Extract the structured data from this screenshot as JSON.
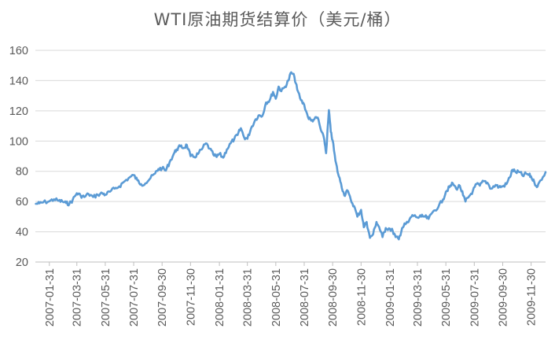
{
  "chart_data": {
    "type": "line",
    "title": "WTI原油期货结算价（美元/桶）",
    "xlabel": "",
    "ylabel": "",
    "ylim": [
      20,
      160
    ],
    "yticks": [
      20,
      40,
      60,
      80,
      100,
      120,
      140,
      160
    ],
    "xlim": [
      "2007-01-01",
      "2009-12-31"
    ],
    "xticks": [
      "2007-01-31",
      "2007-03-31",
      "2007-05-31",
      "2007-07-31",
      "2007-09-30",
      "2007-11-30",
      "2008-01-31",
      "2008-03-31",
      "2008-05-31",
      "2008-07-31",
      "2008-09-30",
      "2008-11-30",
      "2009-01-31",
      "2009-03-31",
      "2009-05-31",
      "2009-07-31",
      "2009-09-30",
      "2009-11-30"
    ],
    "grid": true,
    "legend": "none",
    "series": [
      {
        "color": "#5b9bd5",
        "points": [
          [
            "2007-01-02",
            58.5
          ],
          [
            "2007-01-10",
            58.8
          ],
          [
            "2007-01-18",
            59.5
          ],
          [
            "2007-01-31",
            60.2
          ],
          [
            "2007-02-10",
            61.5
          ],
          [
            "2007-02-20",
            60.5
          ],
          [
            "2007-02-28",
            60.0
          ],
          [
            "2007-03-08",
            59.0
          ],
          [
            "2007-03-15",
            58.5
          ],
          [
            "2007-03-22",
            61.0
          ],
          [
            "2007-03-31",
            65.5
          ],
          [
            "2007-04-08",
            64.0
          ],
          [
            "2007-04-16",
            63.0
          ],
          [
            "2007-04-25",
            65.0
          ],
          [
            "2007-05-05",
            63.0
          ],
          [
            "2007-05-15",
            64.5
          ],
          [
            "2007-05-25",
            65.5
          ],
          [
            "2007-05-31",
            64.5
          ],
          [
            "2007-06-10",
            66.5
          ],
          [
            "2007-06-20",
            68.5
          ],
          [
            "2007-06-30",
            70.0
          ],
          [
            "2007-07-10",
            73.0
          ],
          [
            "2007-07-20",
            75.5
          ],
          [
            "2007-07-31",
            77.5
          ],
          [
            "2007-08-08",
            74.0
          ],
          [
            "2007-08-16",
            71.5
          ],
          [
            "2007-08-25",
            72.0
          ],
          [
            "2007-09-05",
            75.5
          ],
          [
            "2007-09-15",
            78.5
          ],
          [
            "2007-09-22",
            81.5
          ],
          [
            "2007-09-30",
            82.0
          ],
          [
            "2007-10-08",
            80.5
          ],
          [
            "2007-10-16",
            86.0
          ],
          [
            "2007-10-25",
            91.5
          ],
          [
            "2007-10-31",
            94.5
          ],
          [
            "2007-11-08",
            96.5
          ],
          [
            "2007-11-16",
            95.5
          ],
          [
            "2007-11-22",
            97.5
          ],
          [
            "2007-11-30",
            90.0
          ],
          [
            "2007-12-08",
            89.5
          ],
          [
            "2007-12-16",
            91.5
          ],
          [
            "2007-12-24",
            94.5
          ],
          [
            "2008-01-02",
            98.5
          ],
          [
            "2008-01-10",
            95.0
          ],
          [
            "2008-01-18",
            91.0
          ],
          [
            "2008-01-25",
            89.5
          ],
          [
            "2008-01-31",
            91.5
          ],
          [
            "2008-02-08",
            89.0
          ],
          [
            "2008-02-16",
            94.5
          ],
          [
            "2008-02-24",
            98.5
          ],
          [
            "2008-03-03",
            101.5
          ],
          [
            "2008-03-10",
            104.0
          ],
          [
            "2008-03-17",
            108.5
          ],
          [
            "2008-03-24",
            102.5
          ],
          [
            "2008-03-31",
            101.5
          ],
          [
            "2008-04-08",
            108.5
          ],
          [
            "2008-04-16",
            113.5
          ],
          [
            "2008-04-24",
            117.0
          ],
          [
            "2008-05-02",
            116.5
          ],
          [
            "2008-05-10",
            125.5
          ],
          [
            "2008-05-18",
            127.0
          ],
          [
            "2008-05-25",
            132.5
          ],
          [
            "2008-05-31",
            128.0
          ],
          [
            "2008-06-06",
            136.0
          ],
          [
            "2008-06-12",
            133.0
          ],
          [
            "2008-06-20",
            136.0
          ],
          [
            "2008-06-27",
            140.0
          ],
          [
            "2008-07-03",
            145.5
          ],
          [
            "2008-07-10",
            142.5
          ],
          [
            "2008-07-16",
            134.0
          ],
          [
            "2008-07-24",
            127.0
          ],
          [
            "2008-07-31",
            124.0
          ],
          [
            "2008-08-08",
            116.0
          ],
          [
            "2008-08-15",
            113.5
          ],
          [
            "2008-08-22",
            114.5
          ],
          [
            "2008-08-29",
            115.5
          ],
          [
            "2008-09-05",
            107.0
          ],
          [
            "2008-09-12",
            101.0
          ],
          [
            "2008-09-16",
            92.0
          ],
          [
            "2008-09-22",
            120.5
          ],
          [
            "2008-09-26",
            106.0
          ],
          [
            "2008-09-30",
            100.5
          ],
          [
            "2008-10-06",
            87.0
          ],
          [
            "2008-10-12",
            78.0
          ],
          [
            "2008-10-18",
            72.0
          ],
          [
            "2008-10-25",
            64.0
          ],
          [
            "2008-10-31",
            67.5
          ],
          [
            "2008-11-08",
            61.0
          ],
          [
            "2008-11-15",
            57.0
          ],
          [
            "2008-11-22",
            50.0
          ],
          [
            "2008-11-30",
            54.5
          ],
          [
            "2008-12-06",
            43.0
          ],
          [
            "2008-12-12",
            46.5
          ],
          [
            "2008-12-19",
            36.0
          ],
          [
            "2008-12-26",
            38.5
          ],
          [
            "2009-01-02",
            46.5
          ],
          [
            "2009-01-08",
            43.0
          ],
          [
            "2009-01-15",
            36.5
          ],
          [
            "2009-01-22",
            42.5
          ],
          [
            "2009-01-31",
            42.0
          ],
          [
            "2009-02-06",
            40.5
          ],
          [
            "2009-02-12",
            36.5
          ],
          [
            "2009-02-19",
            35.0
          ],
          [
            "2009-02-26",
            42.5
          ],
          [
            "2009-03-05",
            45.0
          ],
          [
            "2009-03-12",
            46.5
          ],
          [
            "2009-03-20",
            51.0
          ],
          [
            "2009-03-31",
            49.5
          ],
          [
            "2009-04-08",
            50.0
          ],
          [
            "2009-04-16",
            50.0
          ],
          [
            "2009-04-24",
            48.5
          ],
          [
            "2009-05-05",
            54.0
          ],
          [
            "2009-05-15",
            56.5
          ],
          [
            "2009-05-25",
            61.5
          ],
          [
            "2009-05-31",
            66.5
          ],
          [
            "2009-06-08",
            69.5
          ],
          [
            "2009-06-15",
            72.0
          ],
          [
            "2009-06-22",
            68.5
          ],
          [
            "2009-06-30",
            70.5
          ],
          [
            "2009-07-07",
            64.0
          ],
          [
            "2009-07-12",
            60.0
          ],
          [
            "2009-07-20",
            63.5
          ],
          [
            "2009-07-28",
            67.0
          ],
          [
            "2009-08-05",
            71.5
          ],
          [
            "2009-08-12",
            70.5
          ],
          [
            "2009-08-20",
            73.5
          ],
          [
            "2009-08-28",
            72.5
          ],
          [
            "2009-09-05",
            68.5
          ],
          [
            "2009-09-15",
            71.0
          ],
          [
            "2009-09-22",
            69.5
          ],
          [
            "2009-09-30",
            70.0
          ],
          [
            "2009-10-08",
            71.5
          ],
          [
            "2009-10-15",
            76.0
          ],
          [
            "2009-10-21",
            81.0
          ],
          [
            "2009-10-28",
            79.5
          ],
          [
            "2009-11-05",
            79.5
          ],
          [
            "2009-11-12",
            77.0
          ],
          [
            "2009-11-19",
            78.5
          ],
          [
            "2009-11-26",
            77.5
          ],
          [
            "2009-11-30",
            76.5
          ],
          [
            "2009-12-07",
            72.5
          ],
          [
            "2009-12-14",
            70.0
          ],
          [
            "2009-12-20",
            74.0
          ],
          [
            "2009-12-31",
            79.5
          ]
        ]
      }
    ]
  }
}
